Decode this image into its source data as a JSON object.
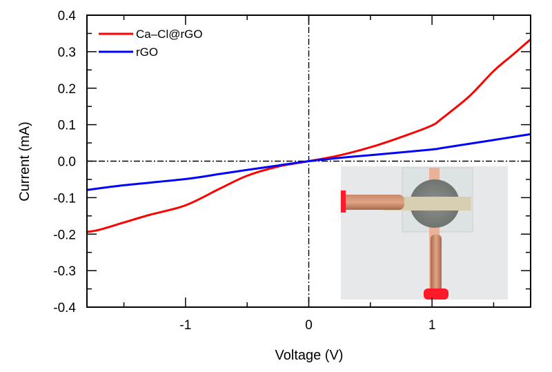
{
  "chart_data": {
    "type": "line",
    "title": "",
    "xlabel": "Voltage (V)",
    "ylabel": "Current (mA)",
    "xlim": [
      -1.8,
      1.8
    ],
    "ylim": [
      -0.4,
      0.4
    ],
    "x_major_ticks": [
      -1,
      0,
      1
    ],
    "x_minor_ticks": [
      -1.5,
      -0.5,
      0.5,
      1.5
    ],
    "x_tick_labels": [
      "-1",
      "0",
      "1"
    ],
    "y_major_ticks": [
      -0.4,
      -0.3,
      -0.2,
      -0.1,
      0.0,
      0.1,
      0.2,
      0.3,
      0.4
    ],
    "y_tick_labels": [
      "-0.4",
      "-0.3",
      "-0.2",
      "-0.1",
      "0.0",
      "0.1",
      "0.2",
      "0.3",
      "0.4"
    ],
    "grid": false,
    "reference_lines": [
      {
        "orientation": "horizontal",
        "value": 0,
        "style": "dash-dot"
      },
      {
        "orientation": "vertical",
        "value": 0,
        "style": "dash-dot"
      }
    ],
    "legend_position": "top-left",
    "series": [
      {
        "name": "Ca–Cl@rGO",
        "color": "#ff0000",
        "x": [
          -1.8,
          -1.7,
          -1.5,
          -1.3,
          -1.0,
          -0.72,
          -0.5,
          -0.25,
          0.0,
          0.25,
          0.52,
          0.8,
          1.0,
          1.08,
          1.3,
          1.5,
          1.65,
          1.8
        ],
        "y": [
          -0.194,
          -0.188,
          -0.168,
          -0.148,
          -0.121,
          -0.075,
          -0.04,
          -0.015,
          0.0,
          0.016,
          0.04,
          0.072,
          0.098,
          0.117,
          0.177,
          0.247,
          0.29,
          0.334
        ]
      },
      {
        "name": "rGO",
        "color": "#0000ff",
        "x": [
          -1.8,
          -1.5,
          -1.0,
          -0.72,
          -0.5,
          -0.25,
          0.0,
          0.25,
          0.52,
          1.0,
          1.08,
          1.5,
          1.8
        ],
        "y": [
          -0.079,
          -0.066,
          -0.049,
          -0.035,
          -0.024,
          -0.012,
          0.0,
          0.009,
          0.017,
          0.032,
          0.036,
          0.058,
          0.074
        ]
      }
    ],
    "inset": {
      "kind": "photo",
      "description": "device with alligator clips",
      "position": "bottom-right"
    }
  }
}
